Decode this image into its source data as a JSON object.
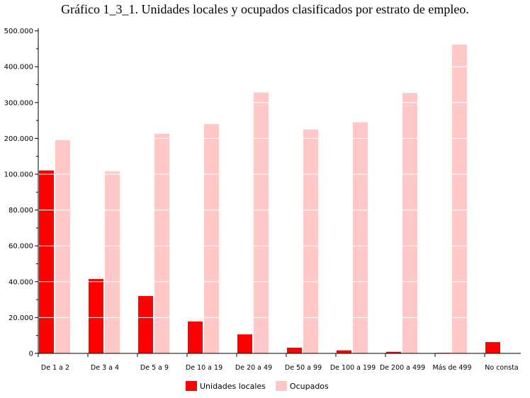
{
  "title": "Gráfico 1_3_1. Unidades locales y ocupados clasificados por estrato de empleo.",
  "colors": {
    "unidades": "#ff0000",
    "ocupados": "#ffc8c8",
    "axis": "#000000",
    "grid": "#ffffff"
  },
  "legend": {
    "unidades": "Unidades locales",
    "ocupados": "Ocupados"
  },
  "chart_data": {
    "type": "bar",
    "title": "Gráfico 1_3_1. Unidades locales y ocupados clasificados por estrato de empleo.",
    "xlabel": "",
    "ylabel": "",
    "scale": "broken-linear (0–100.000 in steps of 20.000; 100.000–500.000 in steps of 100.000)",
    "y_ticks": [
      "0",
      "20.000",
      "40.000",
      "60.000",
      "80.000",
      "100.000",
      "200.000",
      "300.000",
      "400.000",
      "500.000"
    ],
    "y_tick_values": [
      0,
      20000,
      40000,
      60000,
      80000,
      100000,
      200000,
      300000,
      400000,
      500000
    ],
    "categories": [
      "De 1 a 2",
      "De 3 a 4",
      "De 5 a 9",
      "De 10 a 19",
      "De 20 a 49",
      "De 50 a 99",
      "De 100 a 199",
      "De 200 a 499",
      "Más de 499",
      "No consta"
    ],
    "series": [
      {
        "name": "Unidades locales",
        "values": [
          110500,
          41500,
          32000,
          17800,
          10600,
          3200,
          1700,
          900,
          300,
          6300
        ]
      },
      {
        "name": "Ocupados",
        "values": [
          195000,
          108000,
          213000,
          240000,
          328000,
          225000,
          245000,
          327000,
          462000,
          0
        ]
      }
    ],
    "legend_position": "bottom",
    "grid": true
  }
}
